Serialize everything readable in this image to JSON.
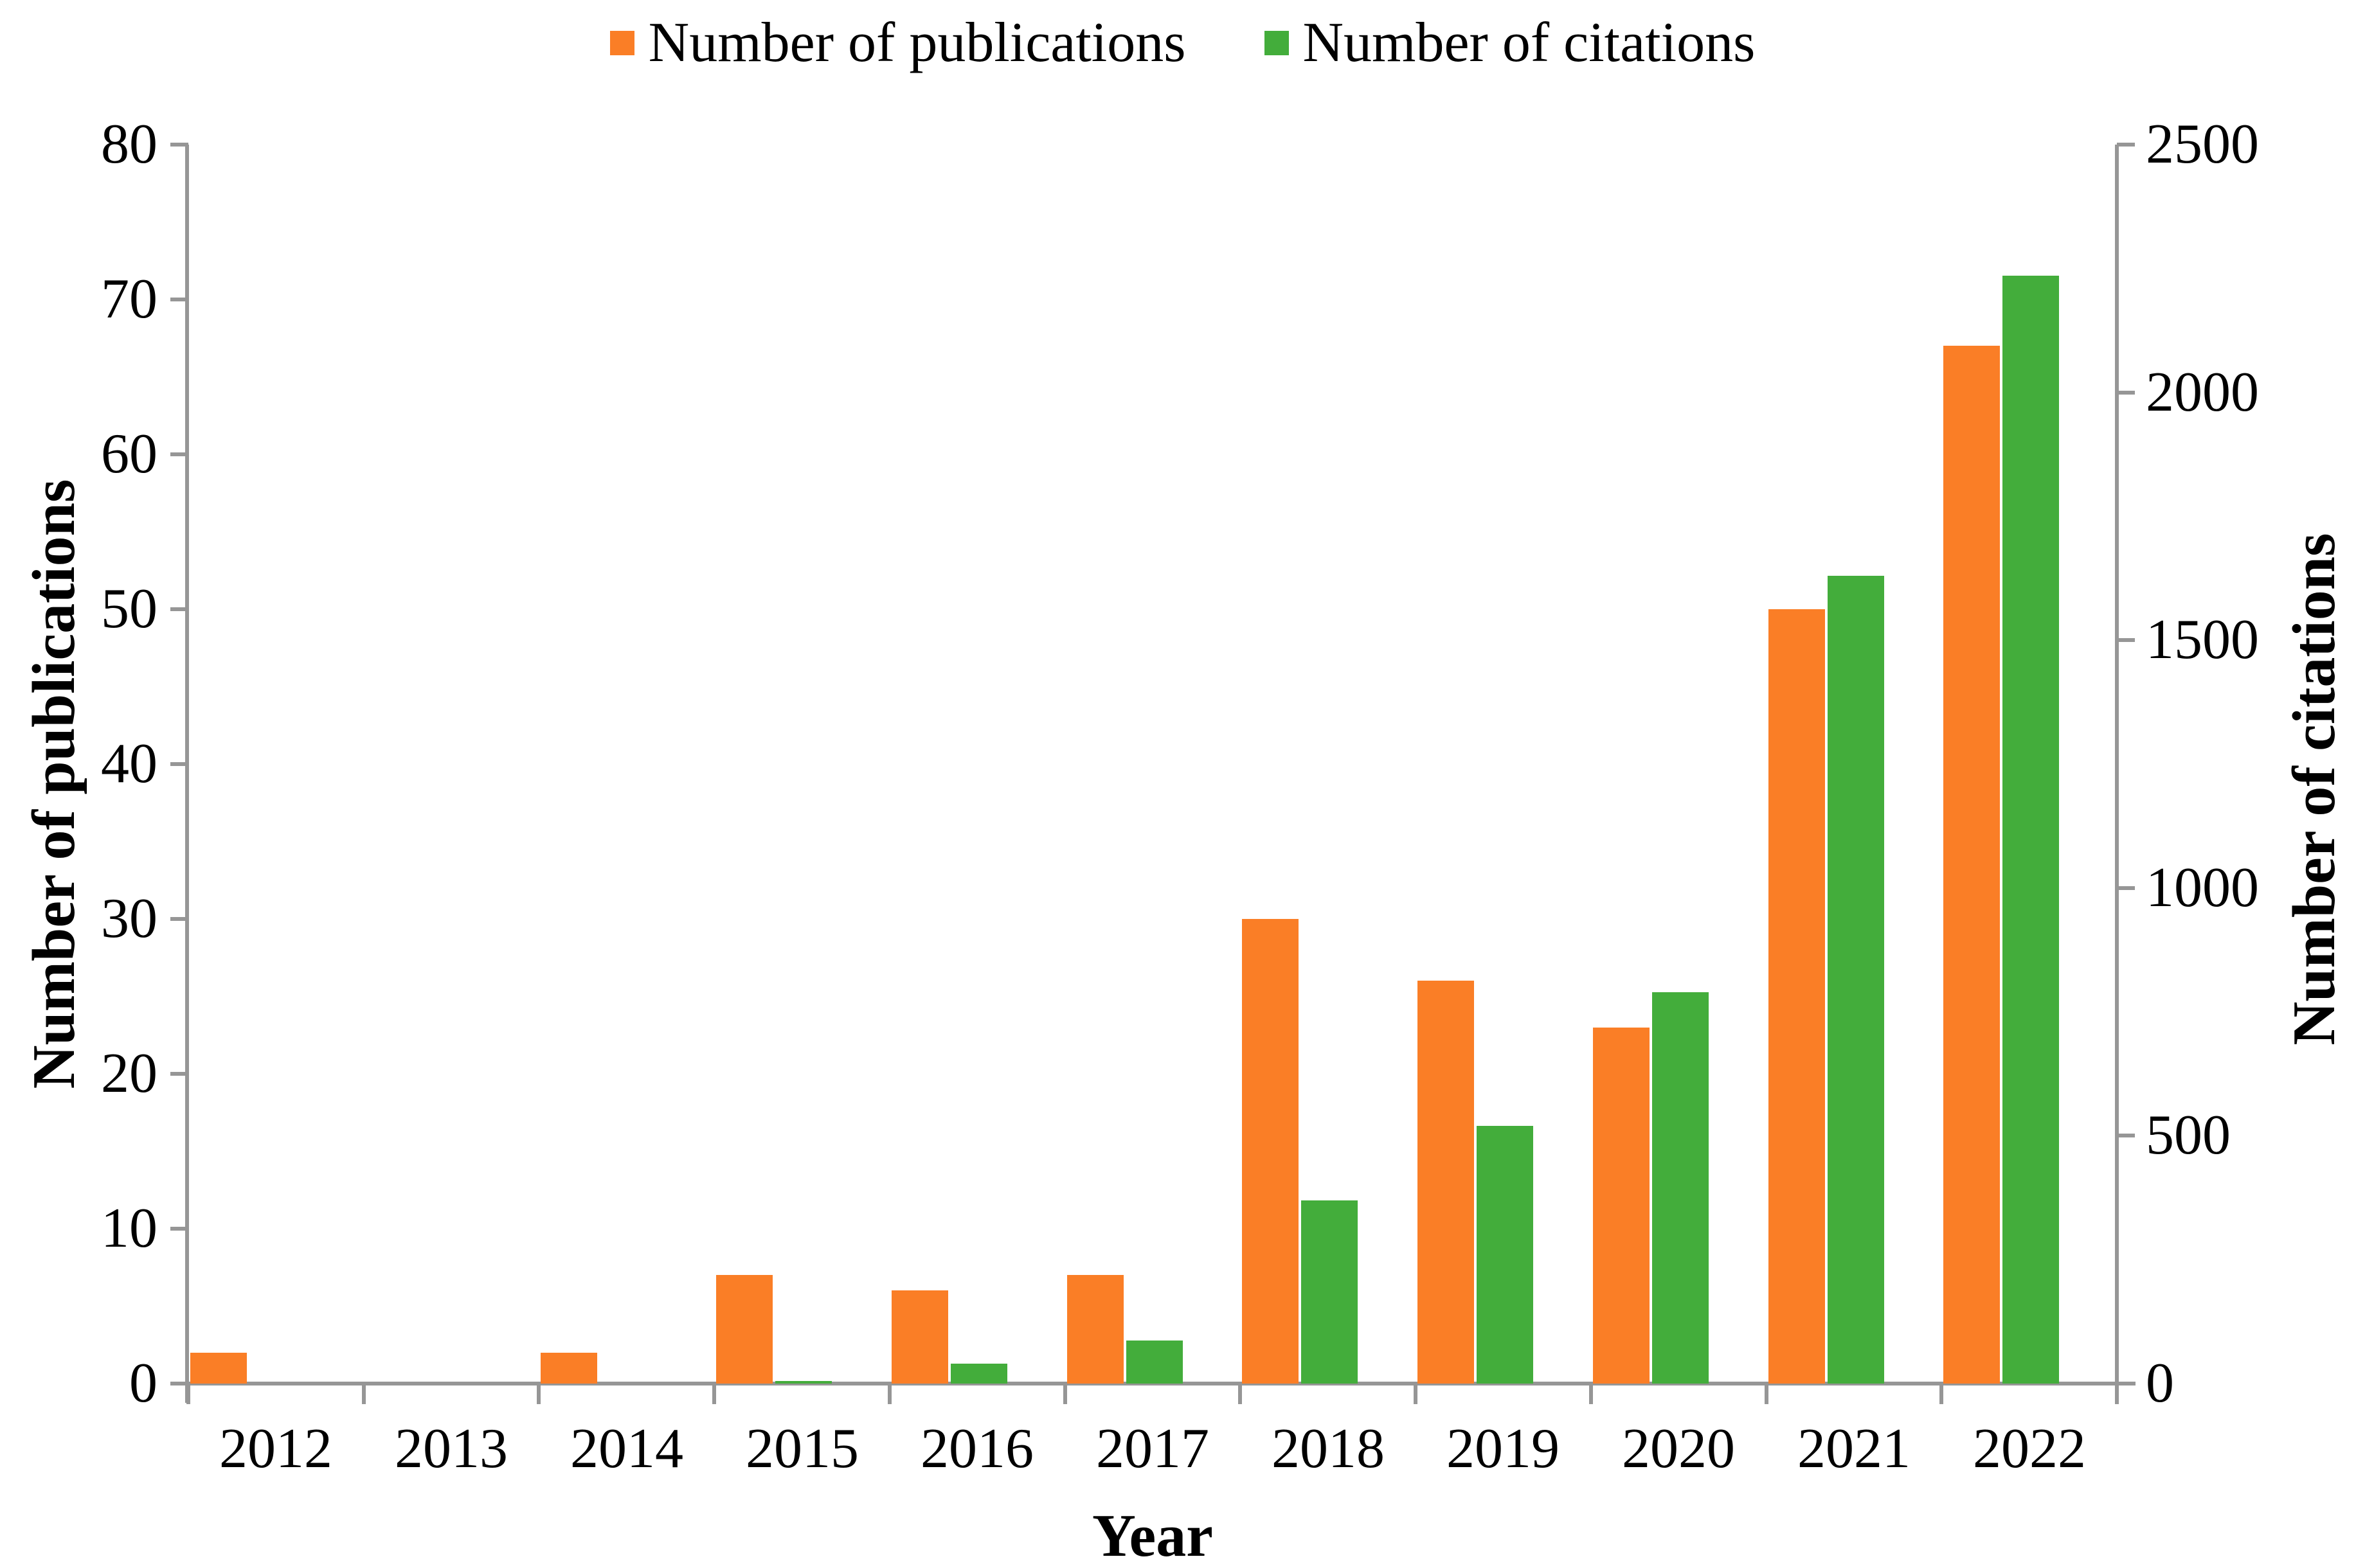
{
  "chart_data": {
    "type": "bar",
    "title": "",
    "categories": [
      "2012",
      "2013",
      "2014",
      "2015",
      "2016",
      "2017",
      "2018",
      "2019",
      "2020",
      "2021",
      "2022"
    ],
    "series": [
      {
        "name": "Number of publications",
        "axis": "left",
        "color": "#FA7E26",
        "values": [
          2,
          0,
          2,
          7,
          6,
          7,
          30,
          26,
          23,
          50,
          67
        ]
      },
      {
        "name": "Number of citations",
        "axis": "right",
        "color": "#43AD3B",
        "values": [
          0,
          0,
          0,
          5,
          40,
          87,
          370,
          520,
          790,
          1630,
          2235
        ]
      }
    ],
    "xlabel": "Year",
    "left_axis": {
      "label": "Number of publications",
      "min": 0,
      "max": 80,
      "step": 10,
      "ticks": [
        "0",
        "10",
        "20",
        "30",
        "40",
        "50",
        "60",
        "70",
        "80"
      ]
    },
    "right_axis": {
      "label": "Number of citations",
      "min": 0,
      "max": 2500,
      "step": 500,
      "ticks": [
        "0",
        "500",
        "1000",
        "1500",
        "2000",
        "2500"
      ]
    },
    "legend_position": "top",
    "grid": false
  },
  "colors": {
    "axis_line": "#969696",
    "publications": "#FA7E26",
    "citations": "#43AD3B",
    "text": "#000000",
    "background": "#FFFFFF"
  }
}
